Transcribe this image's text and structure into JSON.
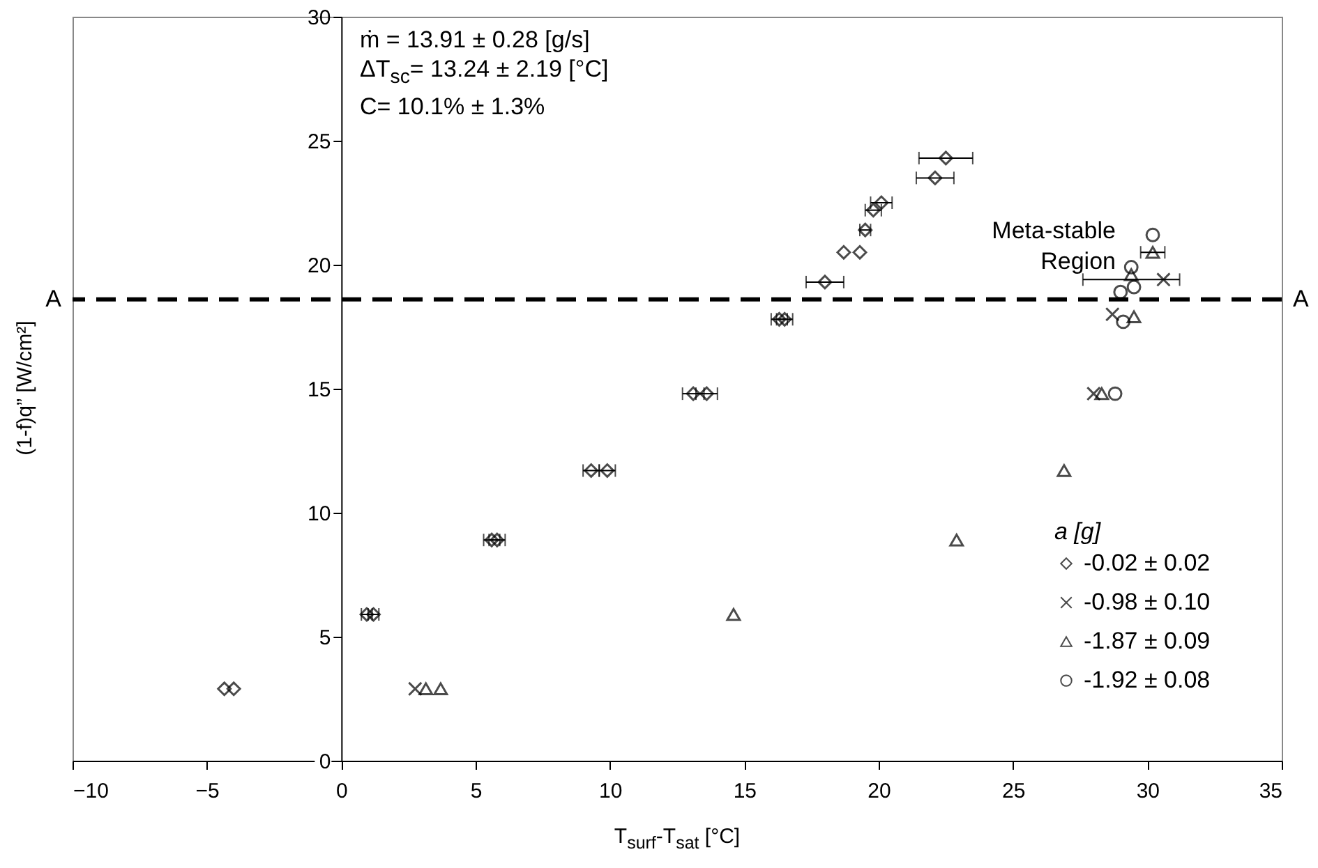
{
  "chart_data": {
    "type": "scatter",
    "xlabel": "T$_{surf}$-T$_{sat}$ [°C]",
    "ylabel": "(1-f)q” [W/cm²]",
    "legend_title": "a [g]",
    "legend": "bottom right",
    "grid": false,
    "xlim": [
      -10,
      35
    ],
    "xticks": [
      -10,
      -5,
      0,
      5,
      10,
      15,
      20,
      25,
      30,
      35
    ],
    "ylim": [
      0,
      30
    ],
    "yticks": [
      0,
      5,
      10,
      15,
      20,
      25,
      30
    ],
    "series": [
      {
        "name": "-0.02 ± 0.02",
        "color": "#000000",
        "marker": "diamond",
        "x": [
          -4.35,
          -4.0,
          0.95,
          1.2,
          5.6,
          5.8,
          9.3,
          9.9,
          13.1,
          13.6,
          16.3,
          16.5,
          18.0,
          18.7,
          19.3,
          19.5,
          19.8,
          20.1,
          22.1,
          22.5
        ],
        "values": [
          2.9,
          2.9,
          5.9,
          5.9,
          8.9,
          8.9,
          11.7,
          11.7,
          14.8,
          14.8,
          17.8,
          17.8,
          19.3,
          20.5,
          20.5,
          21.4,
          22.2,
          22.5,
          23.5,
          24.3
        ],
        "xerrors": [
          null,
          null,
          0.2,
          0.2,
          0.3,
          0.3,
          0.3,
          0.3,
          0.4,
          0.4,
          0.3,
          0.3,
          0.7,
          null,
          null,
          0.2,
          0.3,
          0.4,
          0.7,
          1.0
        ]
      },
      {
        "name": "-0.98 ± 0.10",
        "color": "#000000",
        "marker": "cross",
        "x": [
          2.75,
          28.0,
          28.7,
          30.6
        ],
        "values": [
          2.9,
          14.8,
          18.0,
          19.4
        ],
        "xerrors": [
          null,
          null,
          null,
          [
            27.6,
            31.2
          ]
        ]
      },
      {
        "name": "-1.87 ± 0.09",
        "color": "#000000",
        "marker": "triangle",
        "x": [
          3.15,
          3.7,
          14.6,
          22.9,
          26.9,
          28.3,
          29.5,
          29.4,
          30.2
        ],
        "values": [
          2.9,
          2.9,
          5.9,
          8.9,
          11.7,
          14.8,
          17.9,
          19.6,
          20.5
        ],
        "xerrors": [
          null,
          null,
          null,
          null,
          null,
          null,
          null,
          null,
          0.45
        ]
      },
      {
        "name": "-1.92 ± 0.08",
        "color": "#000000",
        "marker": "circle",
        "x": [
          28.8,
          29.1,
          29.0,
          29.5,
          29.4,
          30.2
        ],
        "values": [
          14.8,
          17.7,
          18.9,
          19.1,
          19.9,
          21.2
        ]
      }
    ],
    "ref_lines": [
      {
        "axis": "y",
        "value": 18.6,
        "label": "A",
        "color": "#000000",
        "line_style": "dashed"
      }
    ],
    "annotations": [
      "ṁ = 13.91 ± 0.28 [g/s]",
      "ΔT$_{sc}$= 13.24 ± 2.19 [°C]",
      "C= 10.1% ± 1.3%",
      "Meta-stable\nRegion"
    ]
  }
}
